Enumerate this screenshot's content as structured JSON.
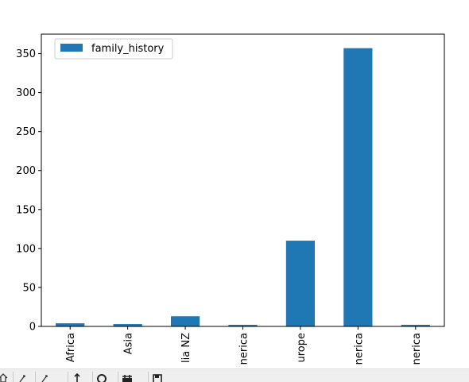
{
  "chart_data": {
    "type": "bar",
    "categories": [
      "Africa",
      "Asia",
      "Australia NZ",
      "Latin America",
      "Europe",
      "North America",
      "South America"
    ],
    "tick_labels_visible": [
      "Africa",
      "Asia",
      "lia NZ",
      "nerica",
      "urope",
      "nerica",
      "nerica"
    ],
    "series": [
      {
        "name": "family_history",
        "values": [
          4,
          3,
          13,
          2,
          110,
          357,
          2
        ]
      }
    ],
    "ylim": [
      0,
      375
    ],
    "yticks": [
      0,
      50,
      100,
      150,
      200,
      250,
      300,
      350
    ],
    "legend_position": "top-left",
    "bar_color": "#1f77b4",
    "grid": false
  },
  "toolbar": {
    "icons": [
      "home-icon",
      "back-icon",
      "forward-icon",
      "pan-icon",
      "zoom-icon",
      "configure-icon",
      "save-icon"
    ]
  }
}
